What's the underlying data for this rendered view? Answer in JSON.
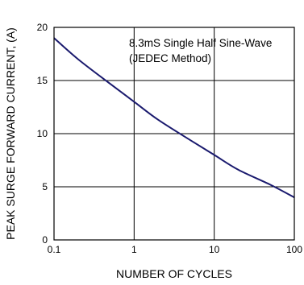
{
  "chart_data": {
    "type": "line",
    "title": "",
    "xlabel": "NUMBER OF CYCLES",
    "ylabel": "PEAK SURGE FORWARD CURRENT, (A)",
    "x_scale": "log",
    "xlim": [
      0.1,
      100
    ],
    "ylim": [
      0,
      20
    ],
    "x_ticks": [
      0.1,
      1,
      10,
      100
    ],
    "x_tick_labels": [
      "0.1",
      "1",
      "10",
      "100"
    ],
    "y_ticks": [
      0,
      5,
      10,
      15,
      20
    ],
    "y_tick_labels": [
      "0",
      "5",
      "10",
      "15",
      "20"
    ],
    "grid": true,
    "annotation": [
      "8.3mS Single Half Sine-Wave",
      "(JEDEC Method)"
    ],
    "series": [
      {
        "color": "#1a1a6e",
        "x": [
          0.1,
          0.2,
          0.5,
          1,
          2,
          5,
          10,
          20,
          50,
          100
        ],
        "y": [
          19.0,
          17.0,
          14.7,
          13.0,
          11.3,
          9.4,
          8.0,
          6.6,
          5.2,
          4.0
        ]
      }
    ]
  }
}
